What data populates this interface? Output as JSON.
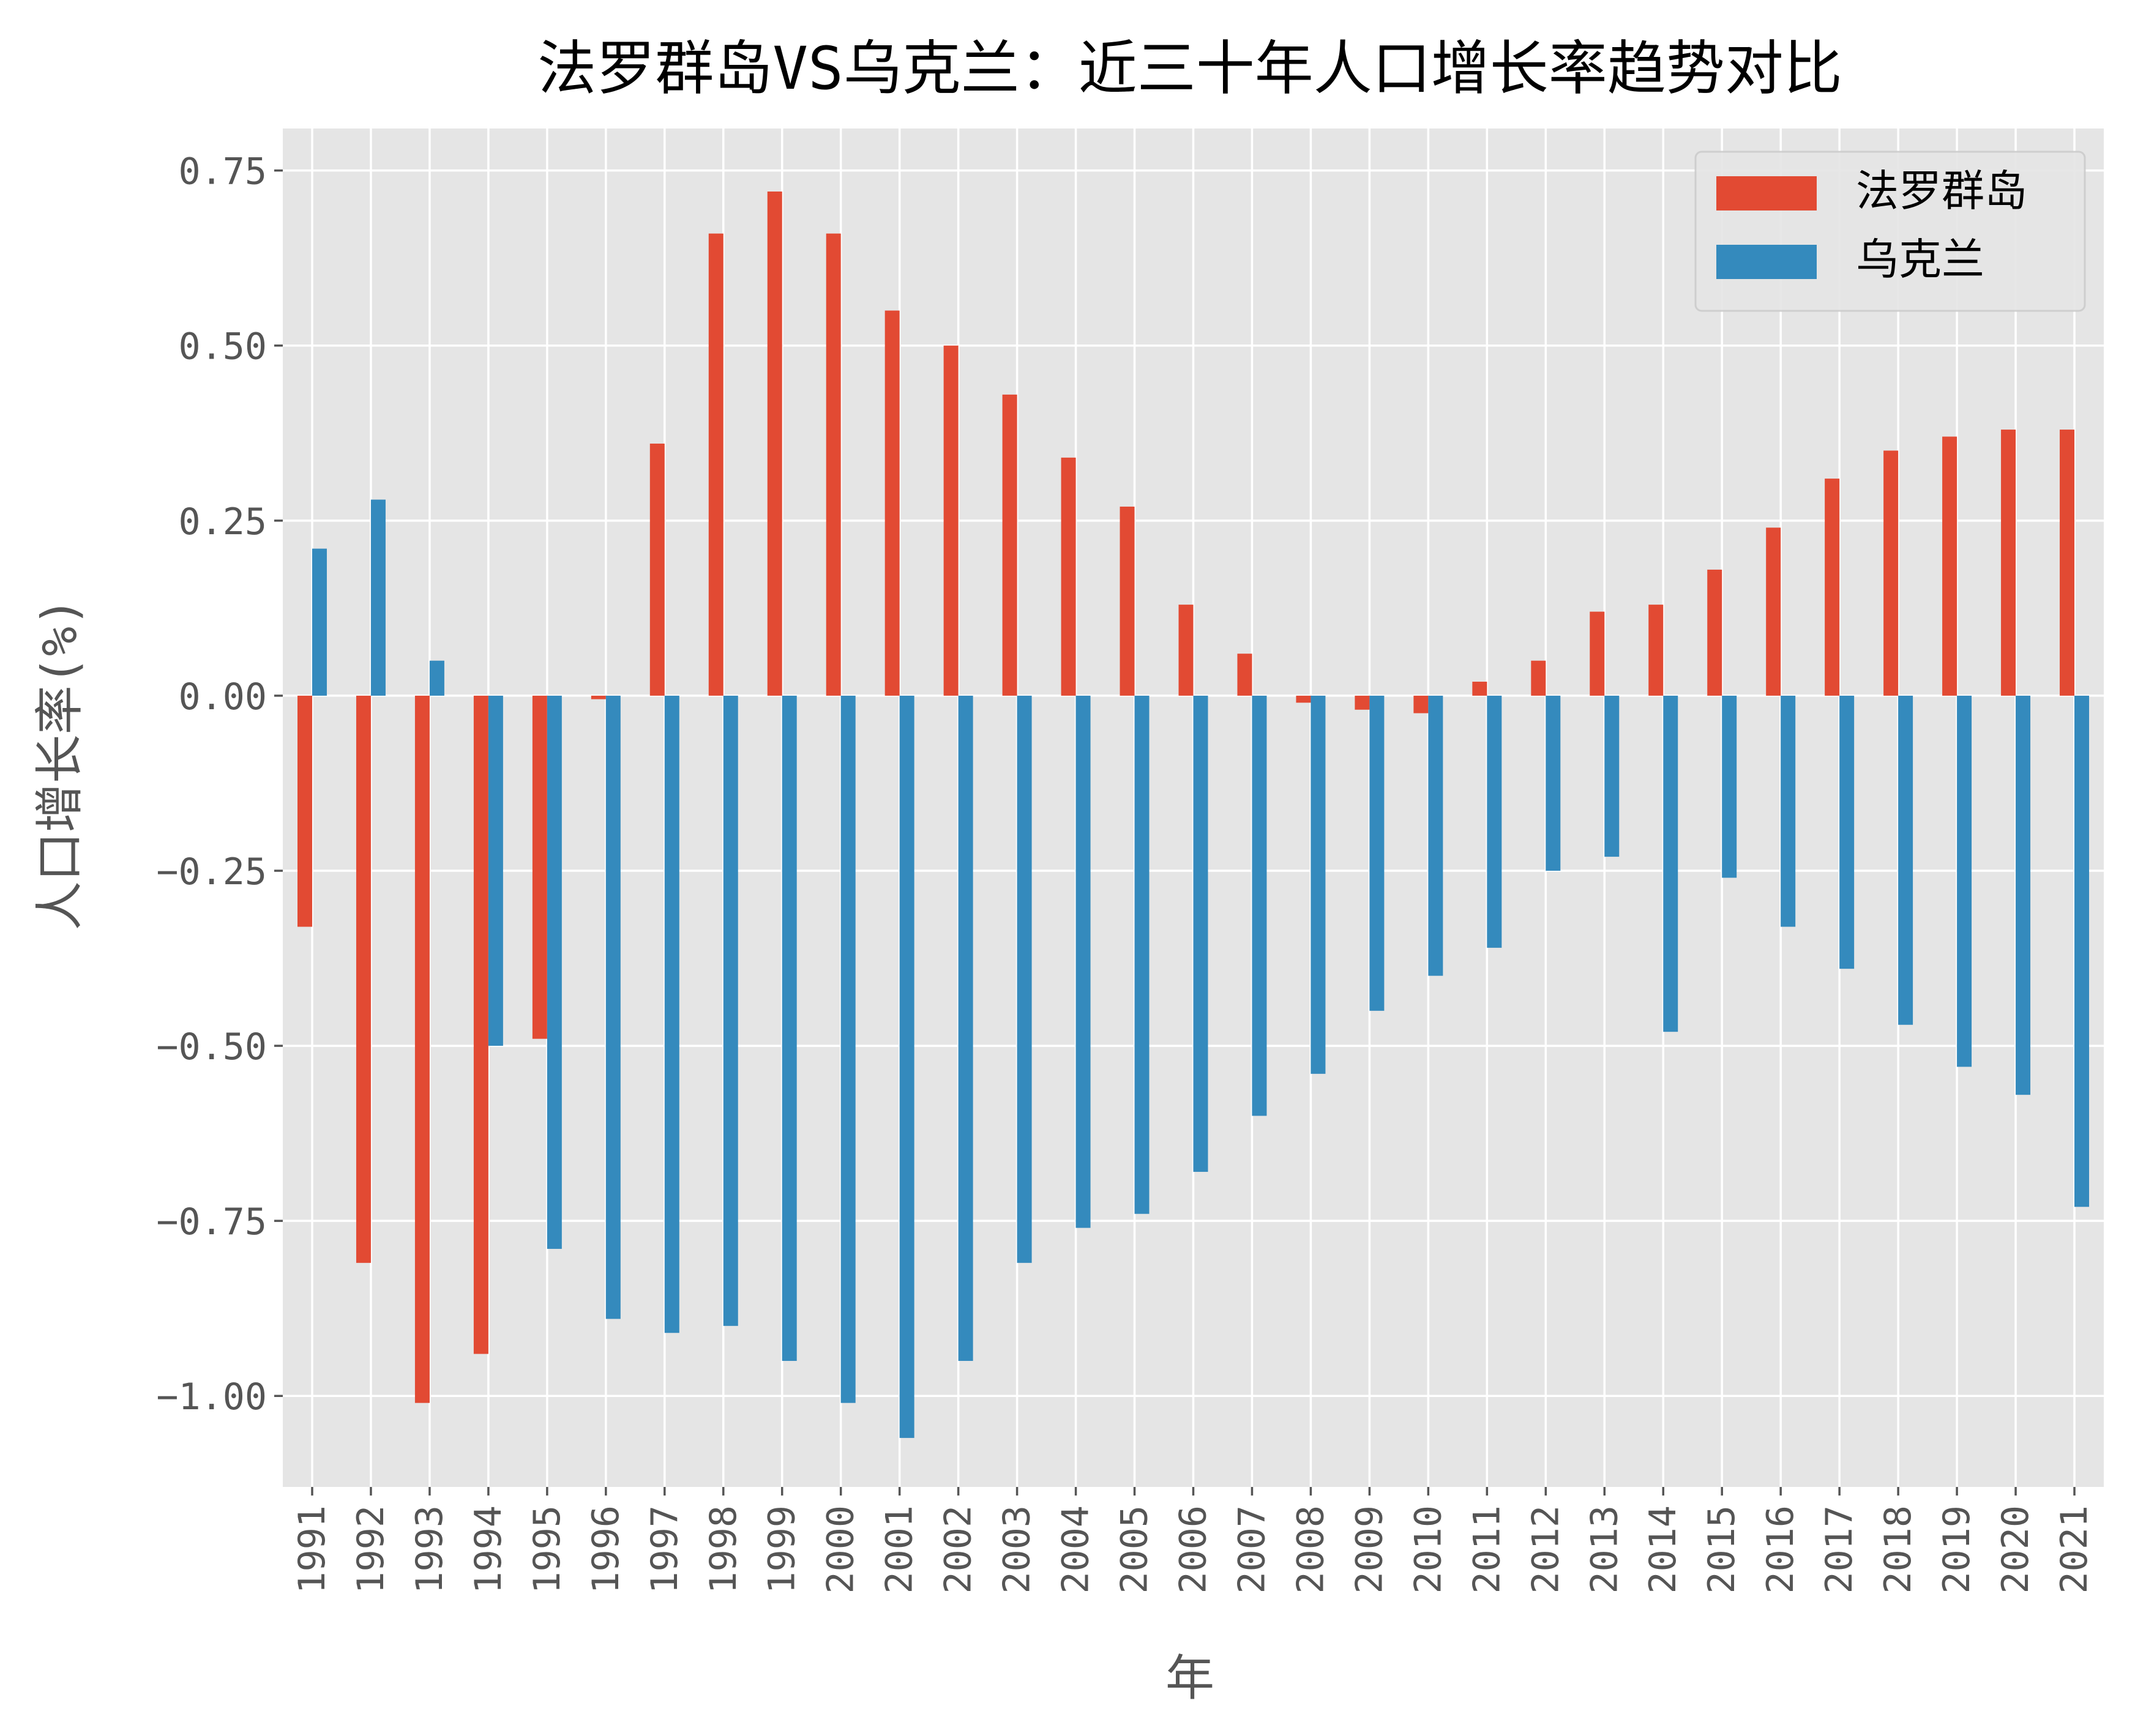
{
  "chart_data": {
    "type": "bar",
    "title": "法罗群岛VS乌克兰：近三十年人口增长率趋势对比",
    "xlabel": "年",
    "ylabel": "人口增长率(%)",
    "ylim": [
      -1.13,
      0.81
    ],
    "yticks": [
      0.75,
      0.5,
      0.25,
      0.0,
      -0.25,
      -0.5,
      -0.75,
      -1.0
    ],
    "ytick_labels": [
      "0.75",
      "0.50",
      "0.25",
      "0.00",
      "−0.25",
      "−0.50",
      "−0.75",
      "−1.00"
    ],
    "grid": true,
    "legend_position": "top-right",
    "categories": [
      "1991",
      "1992",
      "1993",
      "1994",
      "1995",
      "1996",
      "1997",
      "1998",
      "1999",
      "2000",
      "2001",
      "2002",
      "2003",
      "2004",
      "2005",
      "2006",
      "2007",
      "2008",
      "2009",
      "2010",
      "2011",
      "2012",
      "2013",
      "2014",
      "2015",
      "2016",
      "2017",
      "2018",
      "2019",
      "2020",
      "2021"
    ],
    "series": [
      {
        "name": "法罗群岛",
        "color": "#E24A33",
        "values": [
          -0.33,
          -0.81,
          -1.01,
          -0.94,
          -0.49,
          -0.005,
          0.36,
          0.66,
          0.72,
          0.66,
          0.55,
          0.5,
          0.43,
          0.34,
          0.27,
          0.13,
          0.06,
          -0.01,
          -0.02,
          -0.025,
          0.02,
          0.05,
          0.12,
          0.13,
          0.18,
          0.24,
          0.31,
          0.35,
          0.37,
          0.38,
          0.38
        ]
      },
      {
        "name": "乌克兰",
        "color": "#348ABD",
        "values": [
          0.21,
          0.28,
          0.05,
          -0.5,
          -0.79,
          -0.89,
          -0.91,
          -0.9,
          -0.95,
          -1.01,
          -1.06,
          -0.95,
          -0.81,
          -0.76,
          -0.74,
          -0.68,
          -0.6,
          -0.54,
          -0.45,
          -0.4,
          -0.36,
          -0.25,
          -0.23,
          -0.48,
          -0.26,
          -0.33,
          -0.39,
          -0.47,
          -0.53,
          -0.57,
          -0.73
        ]
      }
    ]
  }
}
